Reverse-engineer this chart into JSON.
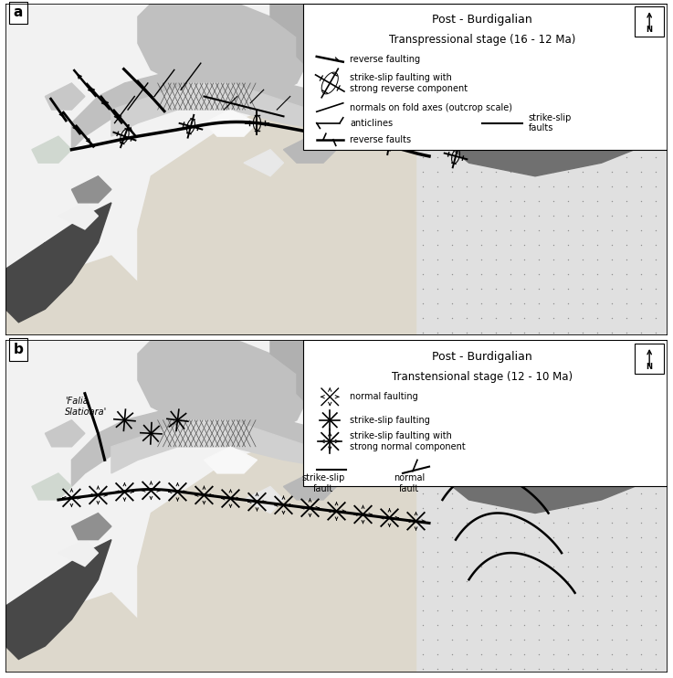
{
  "fig_width": 7.37,
  "fig_height": 7.42,
  "dpi": 100,
  "bg_color": "#ffffff",
  "panel_a": {
    "label": "a",
    "title_line1": "Post - Burdigalian",
    "title_line2": "Transpressional stage (16 - 12 Ma)"
  },
  "panel_b": {
    "label": "b",
    "title_line1": "Post - Burdigalian",
    "title_line2": "Transtensional stage (12 - 10 Ma)",
    "annotation": "'Falia\nSlatioara'"
  },
  "colors": {
    "white": "#ffffff",
    "very_light_gray": "#f2f2f2",
    "light_gray": "#d8d8d8",
    "medium_light_gray": "#c0c0c0",
    "medium_gray": "#a0a0a0",
    "dark_gray": "#707070",
    "very_dark_gray": "#484848",
    "light_tan": "#ddd8cc",
    "medium_tan": "#c8c0b0",
    "dark_tan": "#b0a898",
    "dotted_bg": "#e0e0e0",
    "black": "#000000",
    "hatch_color": "#606060"
  }
}
